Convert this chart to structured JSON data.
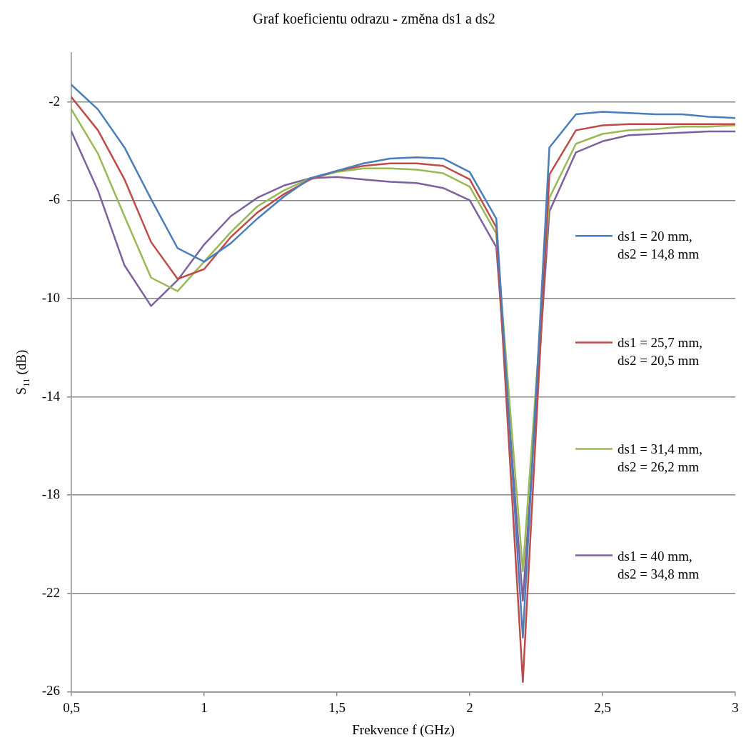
{
  "chart_data": {
    "type": "line",
    "title": "Graf koeficientu odrazu - změna ds1 a ds2",
    "xlabel": "Frekvence f (GHz)",
    "ylabel": "S$_{11}$ (dB)",
    "x": [
      0.5,
      0.6,
      0.7,
      0.8,
      0.9,
      1.0,
      1.1,
      1.2,
      1.3,
      1.4,
      1.5,
      1.6,
      1.7,
      1.8,
      1.9,
      2.0,
      2.1,
      2.2,
      2.3,
      2.4,
      2.5,
      2.6,
      2.7,
      2.8,
      2.9,
      3.0
    ],
    "series": [
      {
        "name": "ds1 = 20 mm, ds2 = 14,8 mm",
        "color": "#4a7ebb",
        "values": [
          -1.3,
          -2.3,
          -3.85,
          -5.95,
          -7.95,
          -8.5,
          -7.75,
          -6.75,
          -5.85,
          -5.1,
          -4.8,
          -4.5,
          -4.3,
          -4.25,
          -4.3,
          -4.85,
          -6.75,
          -23.8,
          -3.85,
          -2.5,
          -2.4,
          -2.45,
          -2.5,
          -2.5,
          -2.6,
          -2.65
        ]
      },
      {
        "name": "ds1 = 25,7 mm, ds2 = 20,5 mm",
        "color": "#be4b48",
        "values": [
          -1.8,
          -3.15,
          -5.15,
          -7.7,
          -9.2,
          -8.8,
          -7.5,
          -6.5,
          -5.75,
          -5.15,
          -4.8,
          -4.6,
          -4.5,
          -4.5,
          -4.6,
          -5.15,
          -7.1,
          -25.6,
          -4.95,
          -3.15,
          -2.95,
          -2.9,
          -2.9,
          -2.9,
          -2.9,
          -2.9
        ]
      },
      {
        "name": "ds1 = 31,4 mm, ds2 = 26,2 mm",
        "color": "#98b954",
        "values": [
          -2.3,
          -4.1,
          -6.65,
          -9.15,
          -9.7,
          -8.5,
          -7.3,
          -6.25,
          -5.6,
          -5.1,
          -4.85,
          -4.7,
          -4.7,
          -4.75,
          -4.9,
          -5.45,
          -7.35,
          -21.1,
          -5.9,
          -3.7,
          -3.3,
          -3.15,
          -3.1,
          -3.0,
          -3.0,
          -2.95
        ]
      },
      {
        "name": "ds1 = 40 mm, ds2 = 34,8 mm",
        "color": "#7d60a0",
        "values": [
          -3.2,
          -5.6,
          -8.65,
          -10.3,
          -9.25,
          -7.8,
          -6.65,
          -5.9,
          -5.4,
          -5.1,
          -5.05,
          -5.15,
          -5.25,
          -5.3,
          -5.5,
          -6.0,
          -7.9,
          -22.3,
          -6.45,
          -4.05,
          -3.6,
          -3.35,
          -3.3,
          -3.25,
          -3.2,
          -3.2
        ]
      }
    ],
    "xlim": [
      0.5,
      3
    ],
    "xticks": [
      {
        "value": 0.5,
        "label": "0,5"
      },
      1,
      {
        "value": 1.5,
        "label": "1,5"
      },
      2,
      {
        "value": 2.5,
        "label": "2,5"
      },
      3
    ],
    "ylim": [
      -26,
      0
    ],
    "yticks": [
      -2,
      -6,
      -10,
      -14,
      -18,
      -22,
      -26
    ],
    "grid": "y",
    "legend": "right",
    "marker": "none",
    "line_style": "solid"
  }
}
